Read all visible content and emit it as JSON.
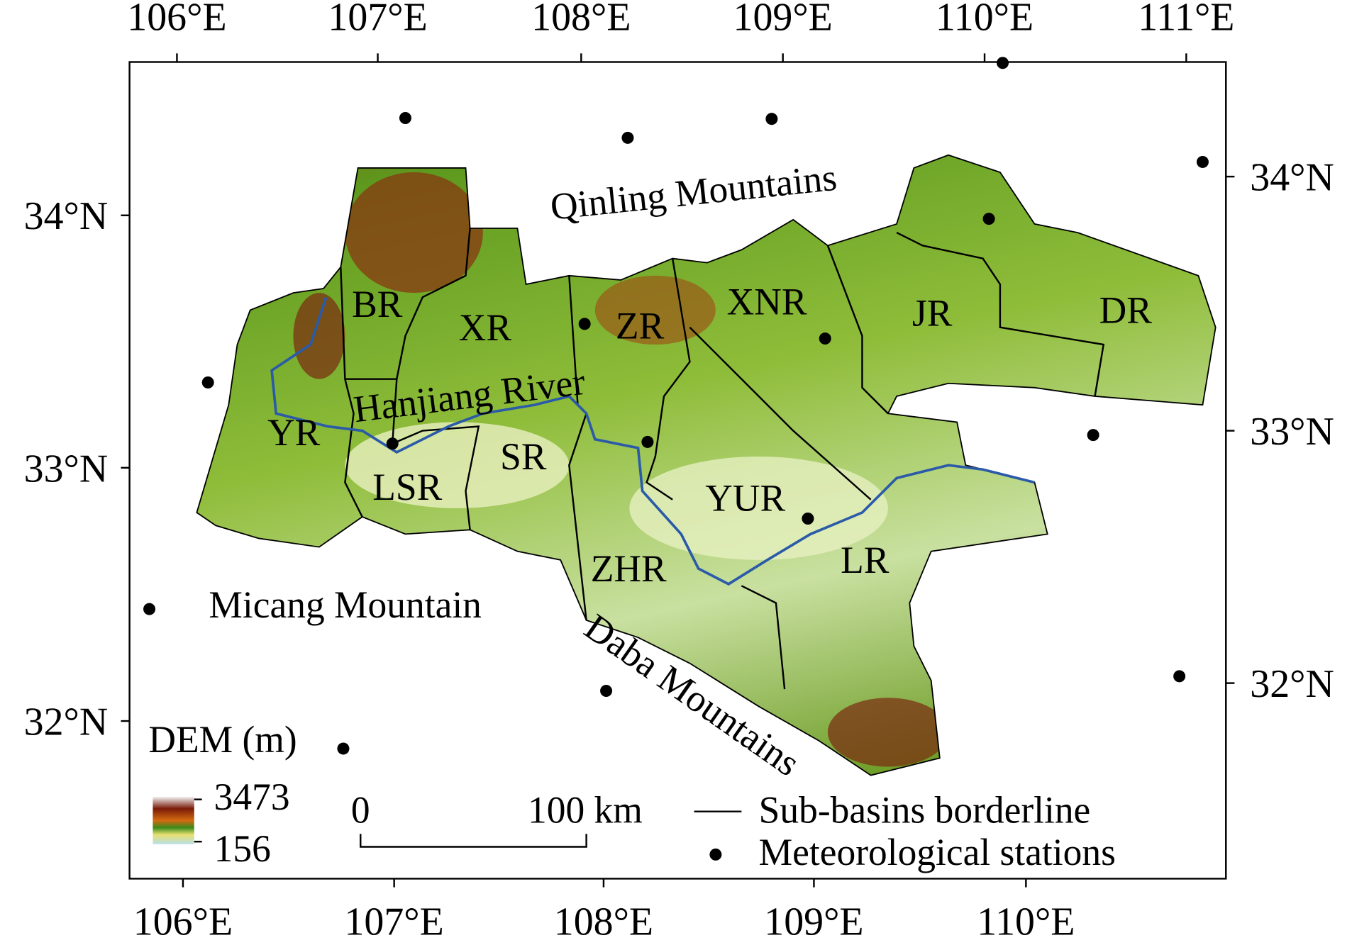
{
  "axes": {
    "top_labels": [
      "106°E",
      "107°E",
      "108°E",
      "109°E",
      "110°E",
      "111°E"
    ],
    "bottom_labels": [
      "106°E",
      "107°E",
      "108°E",
      "109°E",
      "110°E"
    ],
    "left_labels": [
      "34°N",
      "33°N",
      "32°N"
    ],
    "right_labels": [
      "34°N",
      "33°N",
      "32°N"
    ]
  },
  "regions": [
    "BR",
    "XR",
    "ZR",
    "XNR",
    "JR",
    "DR",
    "YR",
    "LSR",
    "SR",
    "YUR",
    "ZHR",
    "LR"
  ],
  "features": {
    "qinling": "Qinling Mountains",
    "hanjiang": "Hanjiang River",
    "micang": "Micang Mountain",
    "daba": "Daba Mountains"
  },
  "legend": {
    "title": "DEM (m)",
    "max": "3473",
    "min": "156",
    "scale_start": "0",
    "scale_end": "100 km",
    "borderline": "Sub-basins borderline",
    "stations": "Meteorological stations"
  }
}
